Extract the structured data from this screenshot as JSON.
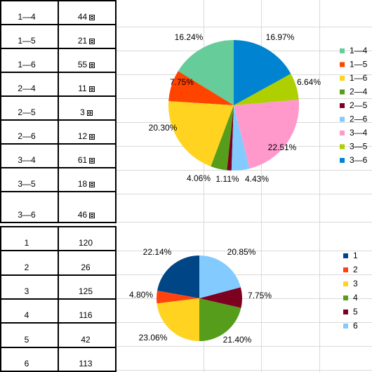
{
  "table_top": {
    "rows": [
      {
        "pair": "1—4",
        "count": "44"
      },
      {
        "pair": "1—5",
        "count": "21"
      },
      {
        "pair": "1—6",
        "count": "55"
      },
      {
        "pair": "2—4",
        "count": "11"
      },
      {
        "pair": "2—5",
        "count": "3"
      },
      {
        "pair": "2—6",
        "count": "12"
      },
      {
        "pair": "3—4",
        "count": "61"
      },
      {
        "pair": "3—5",
        "count": "18"
      },
      {
        "pair": "3—6",
        "count": "46"
      }
    ]
  },
  "table_bottom": {
    "rows": [
      {
        "label": "1",
        "value": "120"
      },
      {
        "label": "2",
        "value": "26"
      },
      {
        "label": "3",
        "value": "125"
      },
      {
        "label": "4",
        "value": "116"
      },
      {
        "label": "5",
        "value": "42"
      },
      {
        "label": "6",
        "value": "113"
      }
    ]
  },
  "chart_data": [
    {
      "type": "pie",
      "categories": [
        "1—4",
        "1—5",
        "1—6",
        "2—4",
        "2—5",
        "2—6",
        "3—4",
        "3—5",
        "3—6"
      ],
      "values": [
        16.24,
        7.75,
        20.3,
        4.06,
        1.11,
        4.43,
        22.51,
        6.64,
        16.97
      ],
      "labels": [
        "16.24%",
        "7.75%",
        "20.30%",
        "4.06%",
        "1.11%",
        "4.43%",
        "22.51%",
        "6.64%",
        "16.97%"
      ],
      "colors": [
        "#66cc99",
        "#ff4400",
        "#ffd320",
        "#579d1c",
        "#7e0021",
        "#83caff",
        "#ff99cc",
        "#aecf00",
        "#0084d1"
      ],
      "legend": [
        "1—4",
        "1—5",
        "1—6",
        "2—4",
        "2—5",
        "2—6",
        "3—4",
        "3—5",
        "3—6"
      ],
      "legend_position": "right",
      "title": ""
    },
    {
      "type": "pie",
      "categories": [
        "1",
        "2",
        "3",
        "4",
        "5",
        "6"
      ],
      "values": [
        22.14,
        4.8,
        23.06,
        21.4,
        7.75,
        20.85
      ],
      "labels": [
        "22.14%",
        "4.80%",
        "23.06%",
        "21.40%",
        "7.75%",
        "20.85%"
      ],
      "colors": [
        "#004586",
        "#ff420e",
        "#ffd320",
        "#579d1c",
        "#7e0021",
        "#83caff"
      ],
      "legend": [
        "1",
        "2",
        "3",
        "4",
        "5",
        "6"
      ],
      "legend_position": "right",
      "title": ""
    }
  ]
}
